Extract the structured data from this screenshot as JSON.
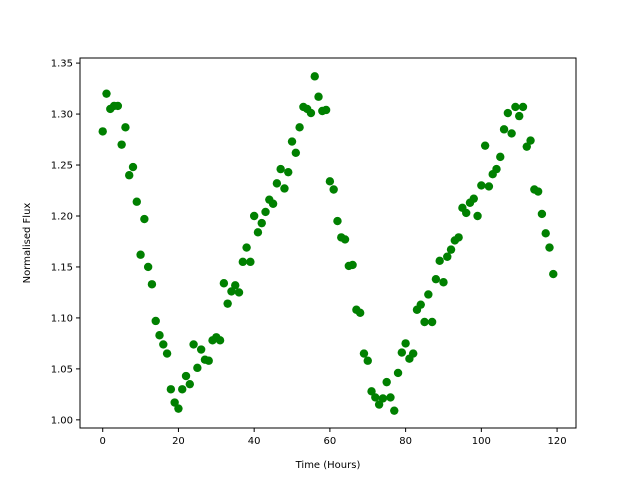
{
  "chart_data": {
    "type": "scatter",
    "title": "",
    "xlabel": "Time (Hours)",
    "ylabel": "Normalised Flux",
    "xlim": [
      -6.0,
      125.0
    ],
    "ylim": [
      0.992,
      1.355
    ],
    "xticks": [
      0,
      20,
      40,
      60,
      80,
      100,
      120
    ],
    "xtick_labels": [
      "0",
      "20",
      "40",
      "60",
      "80",
      "100",
      "120"
    ],
    "yticks": [
      1.0,
      1.05,
      1.1,
      1.15,
      1.2,
      1.25,
      1.3,
      1.35
    ],
    "ytick_labels": [
      "1.00",
      "1.05",
      "1.10",
      "1.15",
      "1.20",
      "1.25",
      "1.30",
      "1.35"
    ],
    "grid": false,
    "legend": null,
    "marker_color": "#008000",
    "series": [
      {
        "x": [
          0,
          1,
          2,
          3,
          4,
          5,
          6,
          7,
          8,
          9,
          10,
          11,
          12,
          13,
          14,
          15,
          16,
          17,
          18,
          19,
          20,
          21,
          22,
          23,
          24,
          25,
          26,
          27,
          28,
          29,
          30,
          31,
          32,
          33,
          34,
          35,
          36,
          37,
          38,
          39,
          40,
          41,
          42,
          43,
          44,
          45,
          46,
          47,
          48,
          49,
          50,
          51,
          52,
          53,
          54,
          55,
          56,
          57,
          58,
          59,
          60,
          61,
          62,
          63,
          64,
          65,
          66,
          67,
          68,
          69,
          70,
          71,
          72,
          73,
          74,
          75,
          76,
          77,
          78,
          79,
          80,
          81,
          82,
          83,
          84,
          85,
          86,
          87,
          88,
          89,
          90,
          91,
          92,
          93,
          94,
          95,
          96,
          97,
          98,
          99,
          100,
          101,
          102,
          103,
          104,
          105,
          106,
          107,
          108,
          109,
          110,
          111,
          112,
          113,
          114,
          115,
          116,
          117,
          118,
          119
        ],
        "y": [
          1.283,
          1.32,
          1.305,
          1.308,
          1.308,
          1.27,
          1.287,
          1.24,
          1.248,
          1.214,
          1.162,
          1.197,
          1.15,
          1.133,
          1.097,
          1.083,
          1.074,
          1.065,
          1.03,
          1.017,
          1.011,
          1.03,
          1.043,
          1.035,
          1.074,
          1.051,
          1.069,
          1.059,
          1.058,
          1.078,
          1.081,
          1.078,
          1.134,
          1.114,
          1.126,
          1.132,
          1.125,
          1.155,
          1.169,
          1.155,
          1.2,
          1.184,
          1.193,
          1.204,
          1.216,
          1.212,
          1.232,
          1.246,
          1.227,
          1.243,
          1.273,
          1.262,
          1.287,
          1.307,
          1.305,
          1.301,
          1.337,
          1.317,
          1.303,
          1.304,
          1.234,
          1.226,
          1.195,
          1.179,
          1.177,
          1.151,
          1.152,
          1.108,
          1.105,
          1.065,
          1.058,
          1.028,
          1.022,
          1.015,
          1.021,
          1.037,
          1.022,
          1.009,
          1.046,
          1.066,
          1.075,
          1.06,
          1.065,
          1.108,
          1.113,
          1.096,
          1.123,
          1.096,
          1.138,
          1.156,
          1.135,
          1.16,
          1.167,
          1.176,
          1.179,
          1.208,
          1.203,
          1.213,
          1.217,
          1.2,
          1.23,
          1.269,
          1.229,
          1.241,
          1.246,
          1.258,
          1.285,
          1.301,
          1.281,
          1.307,
          1.298,
          1.307,
          1.268,
          1.274,
          1.226,
          1.224,
          1.202,
          1.183,
          1.169,
          1.143
        ]
      }
    ]
  }
}
